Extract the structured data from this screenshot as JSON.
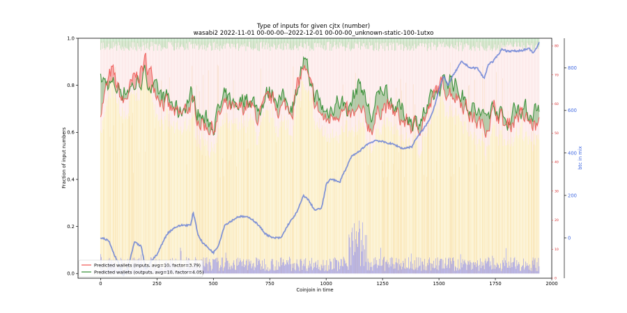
{
  "chart_data": {
    "type": "line",
    "title": "Type of inputs for given cjtx (number)",
    "subtitle": "wasabi2 2022-11-01 00-00-00--2022-12-01 00-00-00_unknown-static-100-1utxo",
    "xlabel": "Coinjoin in time",
    "ylabel": "Fraction of input numbers",
    "y2label": "btc in mix",
    "xlim": [
      -100,
      2000
    ],
    "ylim": [
      -0.02,
      1.0
    ],
    "x_ticks": [
      "0",
      "250",
      "500",
      "750",
      "1000",
      "1250",
      "1500",
      "1750",
      "2000"
    ],
    "y_ticks": [
      "0.0",
      "0.2",
      "0.4",
      "0.6",
      "0.8",
      "1.0"
    ],
    "y_right_small_ticks": [
      "0",
      "10",
      "20",
      "30",
      "40",
      "50",
      "60",
      "70",
      "80"
    ],
    "y_right_ticks": [
      "0",
      "200",
      "400",
      "600",
      "800"
    ],
    "y2lim": [
      -190,
      940
    ],
    "grid": false,
    "legend_position": "lower-left",
    "series": [
      {
        "name": "Predicted wallets (inputs, avg=10, factor=3.79)",
        "color": "#ef5350",
        "x": [
          0,
          50,
          100,
          150,
          200,
          250,
          300,
          350,
          400,
          450,
          500,
          550,
          600,
          650,
          700,
          750,
          800,
          850,
          900,
          950,
          1000,
          1050,
          1100,
          1150,
          1200,
          1250,
          1300,
          1350,
          1400,
          1450,
          1500,
          1550,
          1600,
          1650,
          1700,
          1750,
          1800,
          1850,
          1900,
          1945
        ],
        "values": [
          0.7,
          0.86,
          0.72,
          0.82,
          0.9,
          0.78,
          0.7,
          0.66,
          0.72,
          0.64,
          0.62,
          0.71,
          0.68,
          0.72,
          0.66,
          0.74,
          0.7,
          0.71,
          0.88,
          0.72,
          0.64,
          0.7,
          0.66,
          0.68,
          0.62,
          0.72,
          0.68,
          0.64,
          0.62,
          0.68,
          0.8,
          0.78,
          0.74,
          0.66,
          0.62,
          0.7,
          0.62,
          0.68,
          0.64,
          0.62
        ]
      },
      {
        "name": "Predicted wallets (outputs, avg=10, factor=4.05)",
        "color": "#2e8b2e",
        "x": [
          0,
          50,
          100,
          150,
          200,
          250,
          300,
          350,
          400,
          450,
          500,
          550,
          600,
          650,
          700,
          750,
          800,
          850,
          900,
          950,
          1000,
          1050,
          1100,
          1150,
          1200,
          1250,
          1300,
          1350,
          1400,
          1450,
          1500,
          1550,
          1600,
          1650,
          1700,
          1750,
          1800,
          1850,
          1900,
          1945
        ],
        "values": [
          0.82,
          0.8,
          0.78,
          0.8,
          0.84,
          0.76,
          0.74,
          0.68,
          0.76,
          0.66,
          0.64,
          0.74,
          0.72,
          0.76,
          0.7,
          0.78,
          0.74,
          0.72,
          0.9,
          0.76,
          0.68,
          0.74,
          0.7,
          0.82,
          0.66,
          0.8,
          0.72,
          0.68,
          0.64,
          0.7,
          0.78,
          0.84,
          0.76,
          0.7,
          0.66,
          0.72,
          0.64,
          0.72,
          0.68,
          0.72
        ]
      },
      {
        "name": "btc in mix",
        "color": "#6b83d6",
        "axis": "right",
        "x": [
          0,
          20,
          40,
          60,
          80,
          100,
          120,
          150,
          180,
          200,
          230,
          250,
          280,
          300,
          330,
          360,
          400,
          410,
          420,
          430,
          450,
          480,
          500,
          520,
          530,
          550,
          580,
          610,
          640,
          670,
          700,
          730,
          760,
          800,
          830,
          870,
          900,
          920,
          950,
          980,
          1000,
          1020,
          1060,
          1070,
          1090,
          1110,
          1150,
          1180,
          1220,
          1260,
          1300,
          1340,
          1380,
          1400,
          1430,
          1460,
          1480,
          1500,
          1520,
          1540,
          1560,
          1600,
          1640,
          1670,
          1700,
          1720,
          1740,
          1780,
          1800,
          1850,
          1900,
          1920,
          1945
        ],
        "values": [
          0,
          -5,
          -20,
          -80,
          -120,
          -180,
          -150,
          -20,
          -40,
          -150,
          -100,
          -80,
          -10,
          25,
          50,
          60,
          60,
          120,
          80,
          20,
          -20,
          -50,
          -70,
          -40,
          -10,
          60,
          80,
          100,
          100,
          90,
          60,
          20,
          0,
          0,
          60,
          120,
          200,
          180,
          130,
          140,
          250,
          280,
          260,
          290,
          330,
          380,
          410,
          440,
          460,
          450,
          440,
          420,
          430,
          470,
          510,
          560,
          620,
          700,
          760,
          720,
          760,
          830,
          800,
          800,
          750,
          820,
          830,
          890,
          880,
          880,
          890,
          870,
          920
        ]
      }
    ]
  },
  "legend": {
    "items": [
      {
        "label": "Predicted wallets (inputs, avg=10, factor=3.79)",
        "color": "#ef5350"
      },
      {
        "label": "Predicted wallets (outputs, avg=10, factor=4.05)",
        "color": "#2e8b2e"
      }
    ]
  }
}
